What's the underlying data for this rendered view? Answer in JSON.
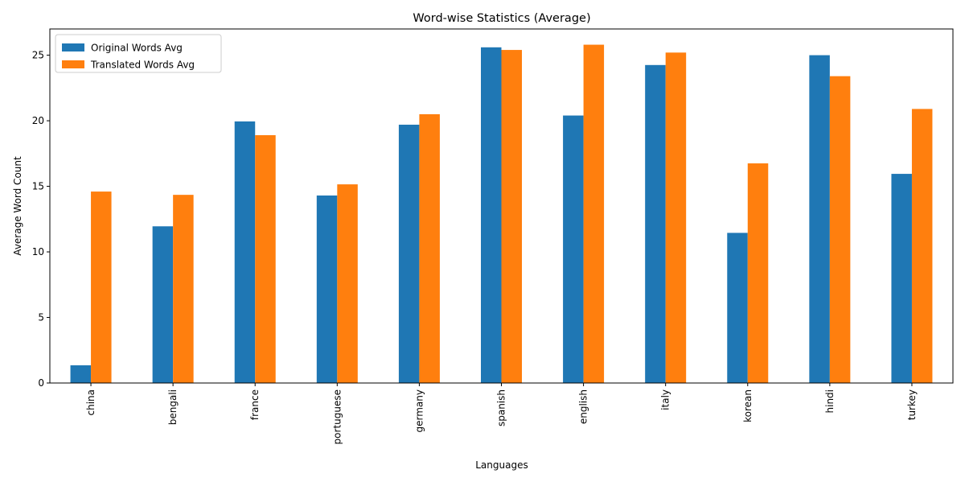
{
  "chart_data": {
    "type": "bar",
    "title": "Word-wise Statistics (Average)",
    "xlabel": "Languages",
    "ylabel": "Average Word Count",
    "categories": [
      "china",
      "bengali",
      "france",
      "portuguese",
      "germany",
      "spanish",
      "english",
      "italy",
      "korean",
      "hindi",
      "turkey"
    ],
    "series": [
      {
        "name": "Original Words Avg",
        "color": "#1f77b4",
        "values": [
          1.35,
          11.95,
          19.95,
          14.3,
          19.7,
          25.6,
          20.4,
          24.25,
          11.45,
          25.0,
          15.95
        ]
      },
      {
        "name": "Translated Words Avg",
        "color": "#ff7f0e",
        "values": [
          14.6,
          14.35,
          18.9,
          15.15,
          20.5,
          25.4,
          25.8,
          25.2,
          16.75,
          23.4,
          20.9
        ]
      }
    ],
    "ylim": [
      0,
      27
    ],
    "yticks": [
      0,
      5,
      10,
      15,
      20,
      25
    ],
    "grid": false,
    "legend_position": "top-left"
  }
}
